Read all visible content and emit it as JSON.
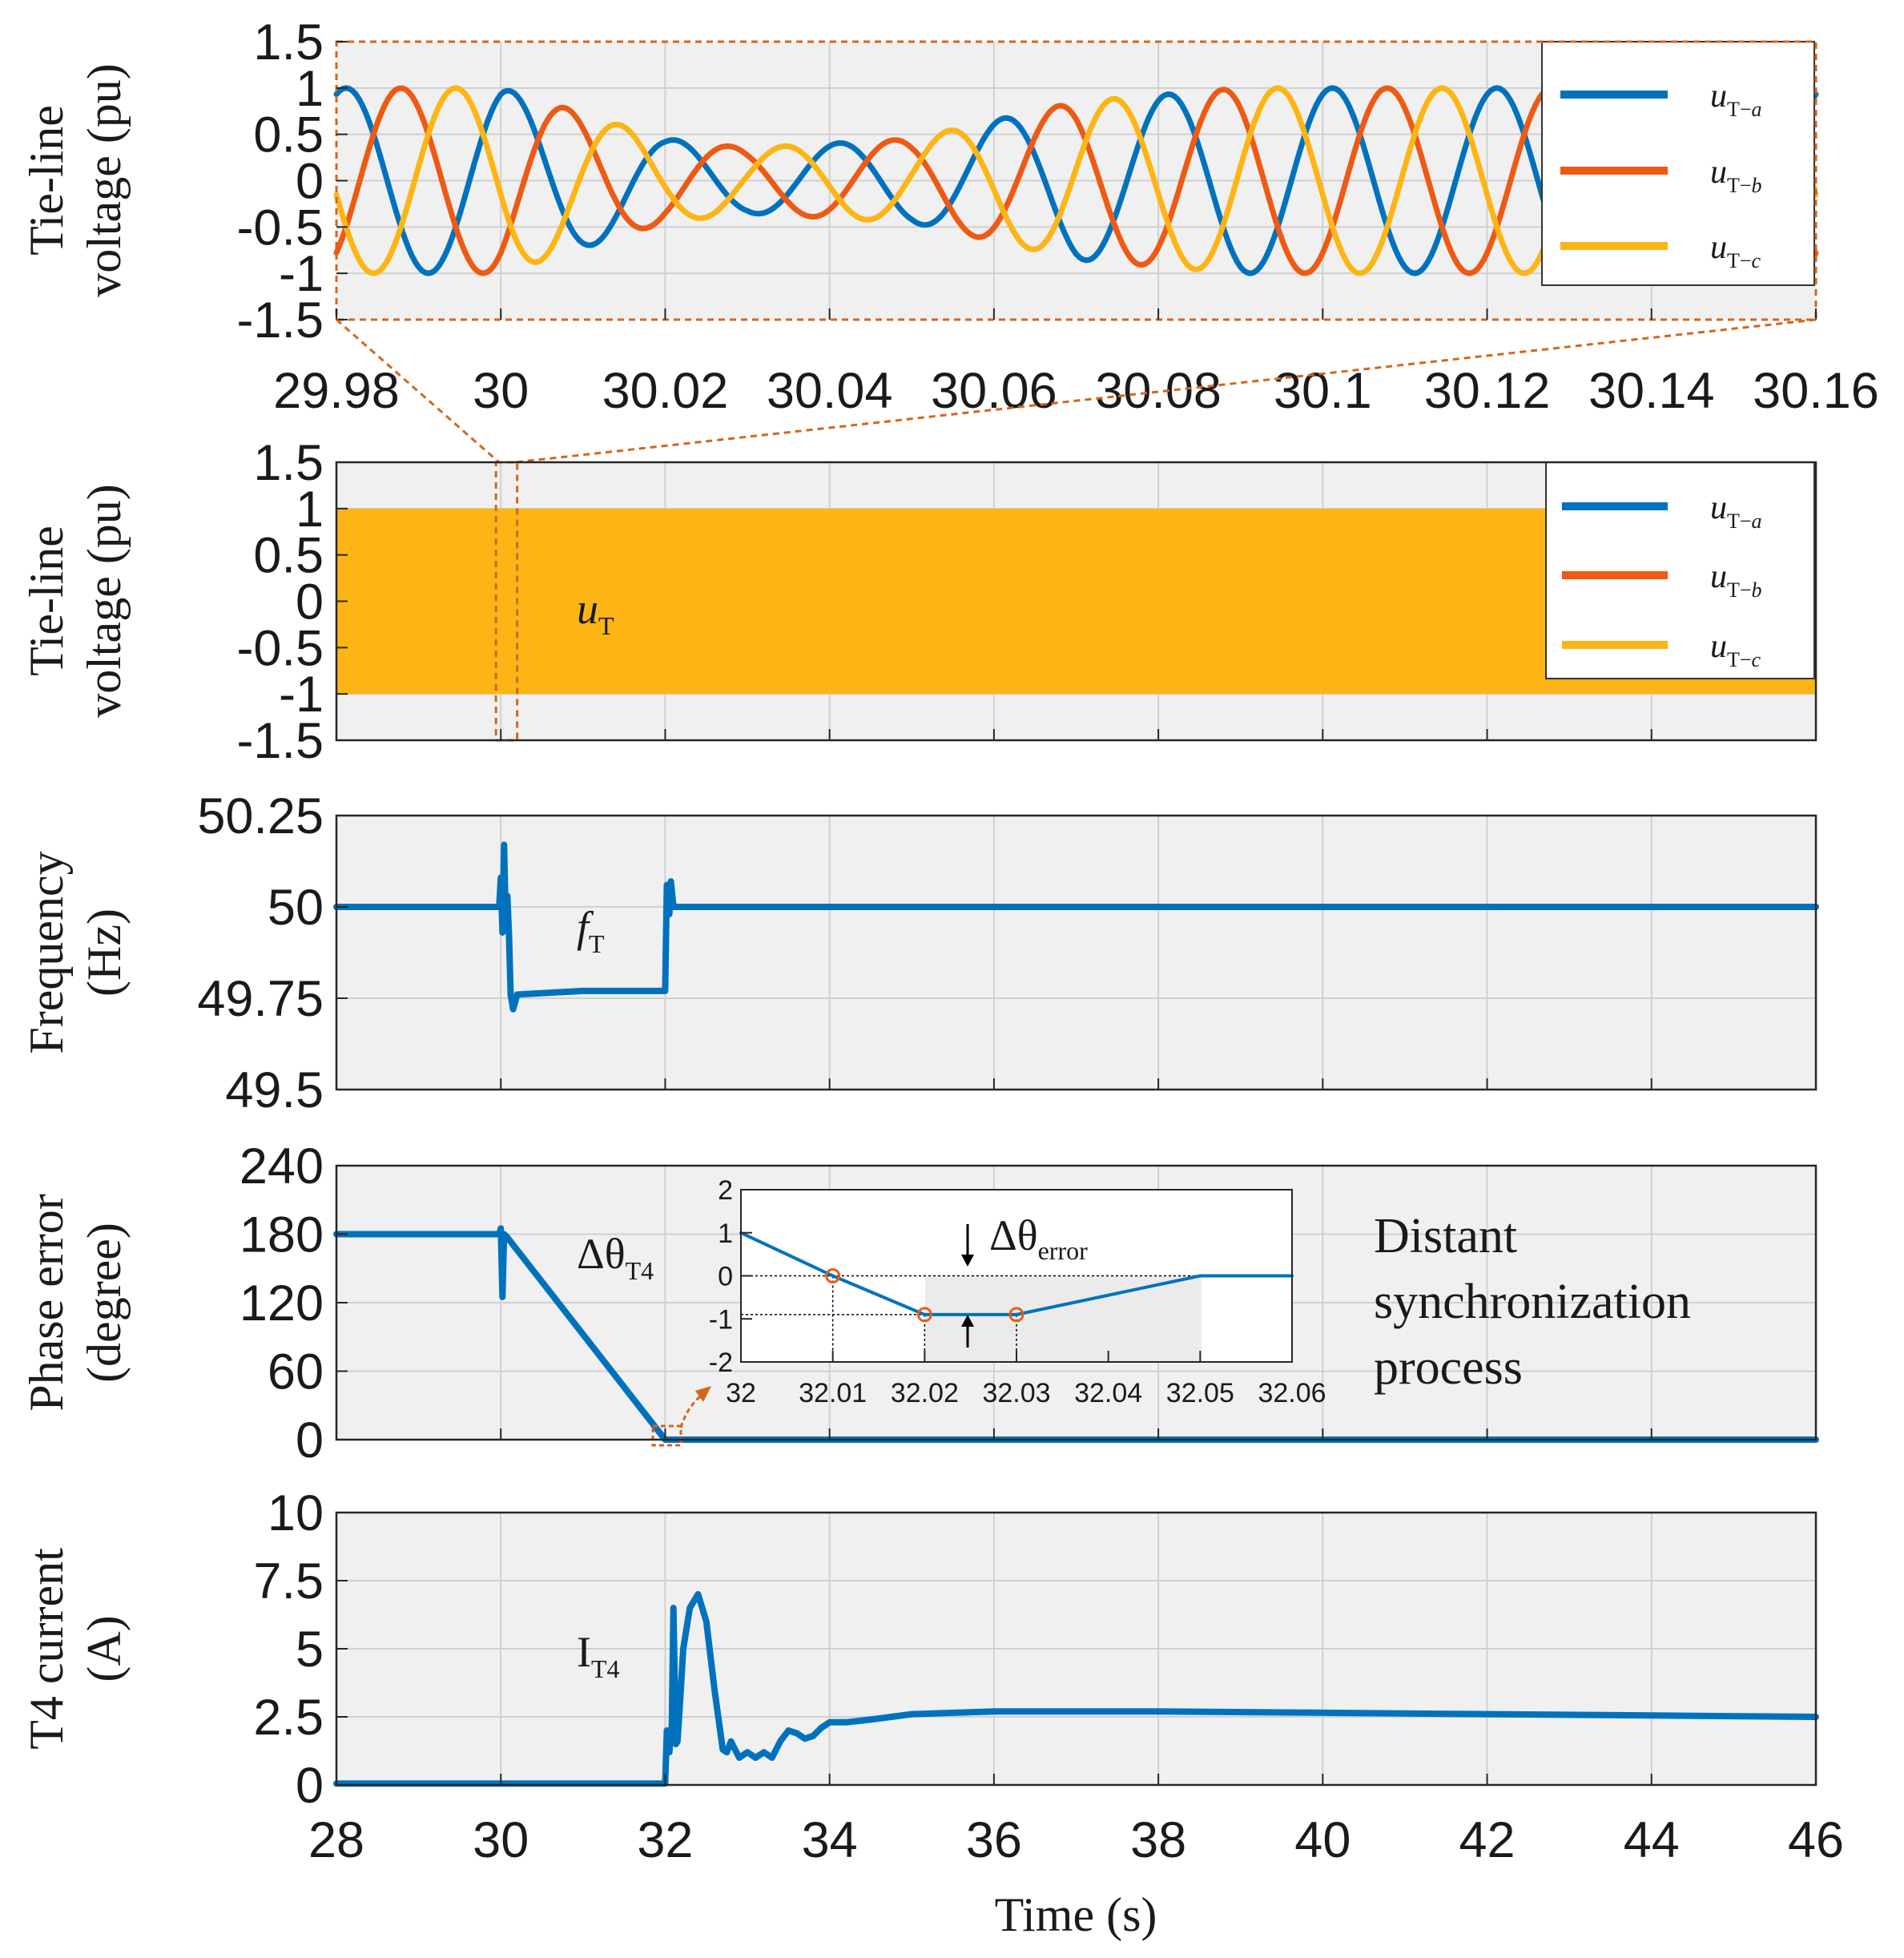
{
  "colors": {
    "phase_a": "#0072BD",
    "phase_b": "#EE5A14",
    "phase_c": "#FDB515",
    "axes_bg": "#F0F0F0",
    "grid": "#D0D0D0",
    "zoom": "#D4661C"
  },
  "chart_data": [
    {
      "id": "zoom",
      "type": "line",
      "ylabel": [
        "Tie-line",
        "voltage (pu)"
      ],
      "xlim": [
        29.98,
        30.16
      ],
      "ylim": [
        -1.5,
        1.5
      ],
      "xticks": [
        29.98,
        30,
        30.02,
        30.04,
        30.06,
        30.08,
        30.1,
        30.12,
        30.14,
        30.16
      ],
      "xticklabels": [
        "29.98",
        "30",
        "30.02",
        "30.04",
        "30.06",
        "30.08",
        "30.1",
        "30.12",
        "30.14",
        "30.16"
      ],
      "yticks": [
        1.5,
        1,
        0.5,
        0,
        -0.5,
        -1,
        -1.5
      ],
      "yticklabels": [
        "1.5",
        "1",
        "0.5",
        "0",
        "-0.5",
        "-1",
        "-1.5"
      ],
      "legend": [
        {
          "base": "u",
          "sub": "T−",
          "phase": "a"
        },
        {
          "base": "u",
          "sub": "T−",
          "phase": "b"
        },
        {
          "base": "u",
          "sub": "T−",
          "phase": "c"
        }
      ],
      "series": [
        {
          "name": "uT-a",
          "phase_deg": 0
        },
        {
          "name": "uT-b",
          "phase_deg": -120
        },
        {
          "name": "uT-c",
          "phase_deg": 120
        }
      ],
      "amplitude_envelope": {
        "x": [
          29.98,
          30.0,
          30.02,
          30.03,
          30.05,
          30.07,
          30.09,
          30.16
        ],
        "amp": [
          1.0,
          1.0,
          0.45,
          0.35,
          0.45,
          0.85,
          1.0,
          1.0
        ]
      }
    },
    {
      "id": "overview",
      "type": "area",
      "ylabel": [
        "Tie-line",
        "voltage (pu)"
      ],
      "xlim": [
        28,
        46
      ],
      "ylim": [
        -1.5,
        1.5
      ],
      "yticks": [
        1.5,
        1,
        0.5,
        0,
        -0.5,
        -1,
        -1.5
      ],
      "yticklabels": [
        "1.5",
        "1",
        "0.5",
        "0",
        "-0.5",
        "-1",
        "-1.5"
      ],
      "band": [
        -1,
        1
      ],
      "annotation": {
        "base": "u",
        "sub": "T"
      },
      "legend": [
        {
          "base": "u",
          "sub": "T−",
          "phase": "a"
        },
        {
          "base": "u",
          "sub": "T−",
          "phase": "b"
        },
        {
          "base": "u",
          "sub": "T−",
          "phase": "c"
        }
      ],
      "zoom_window": [
        29.98,
        30.16
      ]
    },
    {
      "id": "frequency",
      "type": "line",
      "ylabel": [
        "Frequency",
        "(Hz)"
      ],
      "xlim": [
        28,
        46
      ],
      "ylim": [
        49.5,
        50.25
      ],
      "yticks": [
        50.25,
        50,
        49.75,
        49.5
      ],
      "yticklabels": [
        "50.25",
        "50",
        "49.75",
        "49.5"
      ],
      "annotation": {
        "base": "f",
        "sub": "T"
      },
      "series": [
        {
          "name": "fT",
          "x": [
            28,
            29.98,
            30.0,
            30.02,
            30.04,
            30.06,
            30.08,
            30.1,
            30.12,
            30.15,
            30.2,
            31,
            31.5,
            32.0,
            32.02,
            32.05,
            32.07,
            32.1,
            32.15,
            46
          ],
          "y": [
            50,
            50,
            50.08,
            49.93,
            50.17,
            49.95,
            50.03,
            49.92,
            49.76,
            49.72,
            49.76,
            49.77,
            49.77,
            49.77,
            50.06,
            49.98,
            50.07,
            50.0,
            50.0,
            50
          ]
        }
      ]
    },
    {
      "id": "phase",
      "type": "line",
      "ylabel": [
        "Phase error",
        "(degree)"
      ],
      "xlim": [
        28,
        46
      ],
      "ylim": [
        0,
        240
      ],
      "yticks": [
        240,
        180,
        120,
        60,
        0
      ],
      "yticklabels": [
        "240",
        "180",
        "120",
        "60",
        "0"
      ],
      "annotation": {
        "base": "Δθ",
        "sub": "T4"
      },
      "note": [
        "Distant",
        "synchronization",
        "process"
      ],
      "series": [
        {
          "name": "dThetaT4",
          "x": [
            28,
            29.98,
            30.0,
            30.02,
            30.04,
            30.07,
            32.0,
            32.05,
            46
          ],
          "y": [
            180,
            180,
            185,
            125,
            180,
            178,
            0,
            0,
            0
          ]
        }
      ],
      "inset": {
        "xlim": [
          32,
          32.06
        ],
        "ylim": [
          -2,
          2
        ],
        "xticks": [
          32,
          32.01,
          32.02,
          32.03,
          32.04,
          32.05,
          32.06
        ],
        "xticklabels": [
          "32",
          "32.01",
          "32.02",
          "32.03",
          "32.04",
          "32.05",
          "32.06"
        ],
        "yticks": [
          2,
          1,
          0,
          -1,
          -2
        ],
        "yticklabels": [
          "2",
          "1",
          "0",
          "-1",
          "-2"
        ],
        "x": [
          32,
          32.01,
          32.02,
          32.03,
          32.05,
          32.06
        ],
        "y": [
          1,
          0,
          -0.9,
          -0.9,
          0,
          0
        ],
        "markers": [
          {
            "x": 32.01,
            "y": 0
          },
          {
            "x": 32.02,
            "y": -0.9
          },
          {
            "x": 32.03,
            "y": -0.9
          }
        ],
        "label": {
          "base": "Δθ",
          "sub": "error"
        }
      }
    },
    {
      "id": "current",
      "type": "line",
      "ylabel": [
        "T4 current",
        "(A)"
      ],
      "xlabel": "Time (s)",
      "xlim": [
        28,
        46
      ],
      "ylim": [
        0,
        10
      ],
      "xticks": [
        28,
        30,
        32,
        34,
        36,
        38,
        40,
        42,
        44,
        46
      ],
      "xticklabels": [
        "28",
        "30",
        "32",
        "34",
        "36",
        "38",
        "40",
        "42",
        "44",
        "46"
      ],
      "yticks": [
        10,
        7.5,
        5,
        2.5,
        0
      ],
      "yticklabels": [
        "10",
        "7.5",
        "5",
        "2.5",
        "0"
      ],
      "annotation": {
        "base": "I",
        "sub": "T4"
      },
      "series": [
        {
          "name": "IT4",
          "x": [
            28,
            32.0,
            32.02,
            32.05,
            32.08,
            32.1,
            32.13,
            32.15,
            32.18,
            32.22,
            32.3,
            32.4,
            32.5,
            32.6,
            32.7,
            32.75,
            32.8,
            32.9,
            33.0,
            33.1,
            33.2,
            33.3,
            33.4,
            33.5,
            33.6,
            33.7,
            33.8,
            33.9,
            34.0,
            34.2,
            34.5,
            35,
            36,
            37,
            38,
            40,
            42,
            44,
            46
          ],
          "y": [
            0.05,
            0.05,
            2.0,
            1.2,
            2.2,
            6.5,
            1.5,
            1.6,
            3.0,
            5.0,
            6.5,
            7.0,
            6.0,
            3.5,
            1.3,
            1.2,
            1.6,
            1.0,
            1.2,
            1.0,
            1.2,
            1.0,
            1.6,
            2.0,
            1.9,
            1.7,
            1.8,
            2.1,
            2.3,
            2.3,
            2.4,
            2.6,
            2.7,
            2.7,
            2.7,
            2.65,
            2.6,
            2.55,
            2.5
          ]
        }
      ]
    }
  ]
}
